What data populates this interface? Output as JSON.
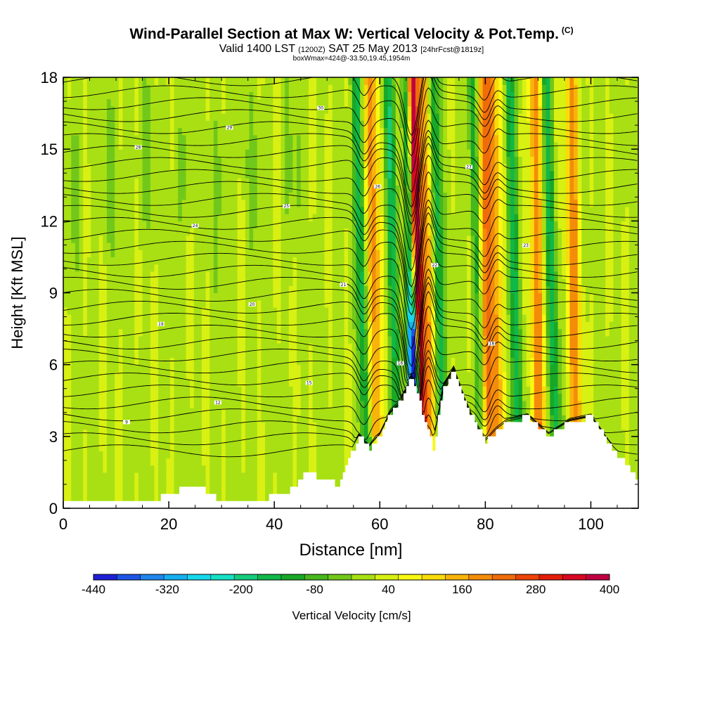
{
  "chart_data": {
    "type": "heatmap",
    "title": "Wind-Parallel Section at Max W: Vertical Velocity & Pot.Temp.",
    "title_mark": "(C)",
    "subtitle_valid": "Valid 1400 LST",
    "subtitle_utc": "(1200Z)",
    "subtitle_date": "SAT 25 May 2013",
    "subtitle_fcst": "[24hrFcst@1819z]",
    "subtitle2": "boxWmax=424@-33.50,19.45,1954m",
    "xlabel": "Distance [nm]",
    "ylabel": "Height [Kft MSL]",
    "xlim": [
      0,
      109
    ],
    "ylim": [
      0,
      18
    ],
    "xticks": [
      "0",
      "20",
      "40",
      "60",
      "80",
      "100"
    ],
    "yticks": [
      "0",
      "3",
      "6",
      "9",
      "12",
      "15",
      "18"
    ],
    "colorbar": {
      "label": "Vertical Velocity [cm/s]",
      "tick_labels": [
        "-440",
        "-320",
        "-200",
        "-80",
        "40",
        "160",
        "280",
        "400"
      ],
      "min": -440,
      "max": 400,
      "step": 40,
      "colors": [
        "#1f1fd6",
        "#1f55e6",
        "#1f86ec",
        "#16b0f0",
        "#16d8ec",
        "#16e0c4",
        "#16cc7c",
        "#10b848",
        "#18a828",
        "#46b81c",
        "#72c81a",
        "#a8e014",
        "#d8f012",
        "#f8f812",
        "#f8dc0a",
        "#f8b40a",
        "#f48c0a",
        "#f06c0a",
        "#ec4408",
        "#e41c08",
        "#d80820",
        "#c00040"
      ]
    },
    "theta_contour_labels": [
      "9",
      "12",
      "15",
      "16",
      "18",
      "19",
      "20",
      "21",
      "22",
      "23",
      "24",
      "25",
      "26",
      "27",
      "28",
      "29",
      "30"
    ],
    "terrain_profile": {
      "x_nm": [
        0,
        17,
        20,
        25,
        30,
        42,
        46,
        52,
        56,
        58,
        60,
        62,
        64,
        66,
        68,
        70,
        72,
        74,
        76,
        78,
        80,
        84,
        88,
        92,
        96,
        100,
        104,
        109
      ],
      "height_kft": [
        0.3,
        0.3,
        0.6,
        1.0,
        0.3,
        0.5,
        1.5,
        1.0,
        3.0,
        2.5,
        3.0,
        4.0,
        4.5,
        5.5,
        4.0,
        2.5,
        5.0,
        5.8,
        4.5,
        3.5,
        2.8,
        3.6,
        3.8,
        3.0,
        3.6,
        3.8,
        2.5,
        1.2
      ]
    },
    "updraft_cores_x_nm": [
      59,
      67.5,
      69,
      80,
      82,
      90,
      97
    ],
    "downdraft_cores_x_nm": [
      57,
      63,
      66.5,
      71.5,
      79,
      86,
      93
    ]
  }
}
